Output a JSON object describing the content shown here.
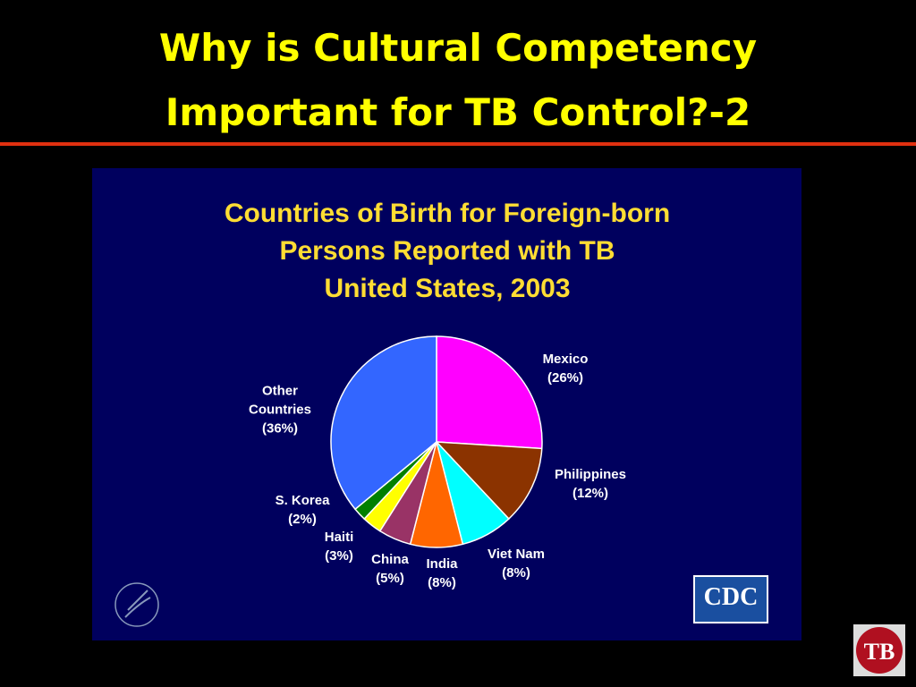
{
  "slide_title": [
    "Why is Cultural Competency",
    "Important for TB Control?-2"
  ],
  "chart_data": {
    "type": "pie",
    "title": [
      "Countries of Birth for Foreign-born",
      "Persons Reported with TB",
      "United States, 2003"
    ],
    "categories": [
      "Mexico",
      "Philippines",
      "Viet Nam",
      "India",
      "China",
      "Haiti",
      "S. Korea",
      "Other Countries"
    ],
    "values": [
      26,
      12,
      8,
      8,
      5,
      3,
      2,
      36
    ],
    "value_labels": [
      "(26%)",
      "(12%)",
      "(8%)",
      "(8%)",
      "(5%)",
      "(3%)",
      "(2%)",
      "(36%)"
    ],
    "colors": [
      "#ff00ff",
      "#8b3300",
      "#00ffff",
      "#ff6600",
      "#993366",
      "#ffff00",
      "#008000",
      "#3366ff"
    ]
  },
  "logos": {
    "cdc": "CDC",
    "tb": "TB"
  }
}
